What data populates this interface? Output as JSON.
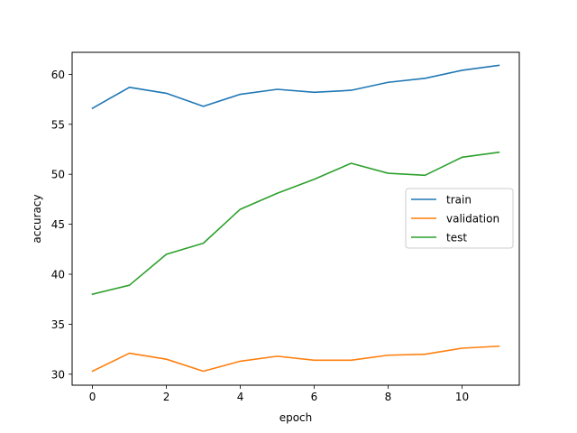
{
  "chart_data": {
    "type": "line",
    "title": "",
    "xlabel": "epoch",
    "ylabel": "accuracy",
    "x": [
      0,
      1,
      2,
      3,
      4,
      5,
      6,
      7,
      8,
      9,
      10,
      11
    ],
    "xlim": [
      -0.55,
      11.55
    ],
    "ylim": [
      28.9,
      62.2
    ],
    "xticks": [
      0,
      2,
      4,
      6,
      8,
      10
    ],
    "yticks": [
      30,
      35,
      40,
      45,
      50,
      55,
      60
    ],
    "grid": false,
    "legend_position": "center-right",
    "series": [
      {
        "name": "train",
        "color": "#1f77b4",
        "values": [
          56.6,
          58.7,
          58.1,
          56.8,
          58.0,
          58.5,
          58.2,
          58.4,
          59.2,
          59.6,
          60.4,
          60.9
        ]
      },
      {
        "name": "validation",
        "color": "#ff7f0e",
        "values": [
          30.3,
          32.1,
          31.5,
          30.3,
          31.3,
          31.8,
          31.4,
          31.4,
          31.9,
          32.0,
          32.6,
          32.8
        ]
      },
      {
        "name": "test",
        "color": "#2ca02c",
        "values": [
          38.0,
          38.9,
          42.0,
          43.1,
          46.5,
          48.1,
          49.5,
          51.1,
          50.1,
          49.9,
          51.7,
          52.2
        ]
      }
    ]
  }
}
